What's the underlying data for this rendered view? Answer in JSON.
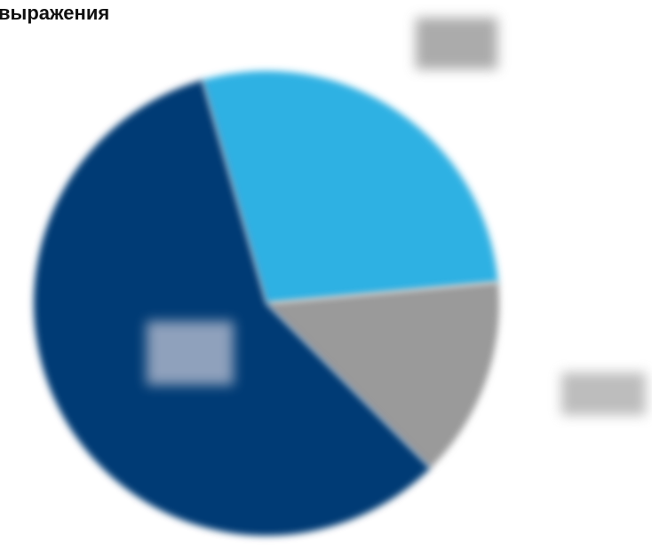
{
  "chart_data": {
    "type": "pie",
    "title": "выражения",
    "slices": [
      {
        "value": 28,
        "color": "#2fb1e3"
      },
      {
        "value": 14,
        "color": "#9a9a9a"
      },
      {
        "value": 58,
        "color": "#033a75"
      }
    ]
  }
}
